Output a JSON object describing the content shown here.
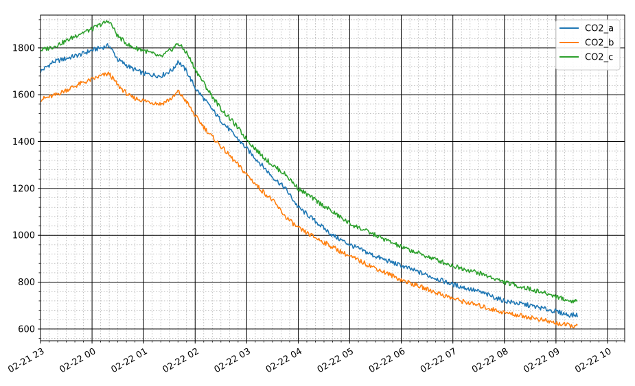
{
  "chart_data": {
    "type": "line",
    "title": "",
    "xlabel": "",
    "ylabel": "",
    "x_range": [
      "2022-02-21 23:00",
      "2022-02-22 10:20"
    ],
    "ylim": [
      550,
      1940
    ],
    "grid": "on",
    "legend_placement": "top-right",
    "x_tick_labels": [
      "02-21 23",
      "02-22 00",
      "02-22 01",
      "02-22 02",
      "02-22 03",
      "02-22 04",
      "02-22 05",
      "02-22 06",
      "02-22 07",
      "02-22 08",
      "02-22 09",
      "02-22 10"
    ],
    "x_tick_values": [
      "2022-02-21 23:00",
      "2022-02-22 00:00",
      "2022-02-22 01:00",
      "2022-02-22 02:00",
      "2022-02-22 03:00",
      "2022-02-22 04:00",
      "2022-02-22 05:00",
      "2022-02-22 06:00",
      "2022-02-22 07:00",
      "2022-02-22 08:00",
      "2022-02-22 09:00",
      "2022-02-22 10:00"
    ],
    "y_ticks": [
      600,
      800,
      1000,
      1200,
      1400,
      1600,
      1800
    ],
    "x": [
      "2022-02-21 23:00",
      "2022-02-21 23:15",
      "2022-02-21 23:30",
      "2022-02-21 23:45",
      "2022-02-22 00:00",
      "2022-02-22 00:10",
      "2022-02-22 00:20",
      "2022-02-22 00:30",
      "2022-02-22 00:45",
      "2022-02-22 01:00",
      "2022-02-22 01:20",
      "2022-02-22 01:35",
      "2022-02-22 01:40",
      "2022-02-22 01:50",
      "2022-02-22 02:00",
      "2022-02-22 02:15",
      "2022-02-22 02:30",
      "2022-02-22 02:45",
      "2022-02-22 03:00",
      "2022-02-22 03:15",
      "2022-02-22 03:30",
      "2022-02-22 03:45",
      "2022-02-22 04:00",
      "2022-02-22 04:20",
      "2022-02-22 04:40",
      "2022-02-22 05:00",
      "2022-02-22 05:30",
      "2022-02-22 06:00",
      "2022-02-22 06:30",
      "2022-02-22 07:00",
      "2022-02-22 07:30",
      "2022-02-22 08:00",
      "2022-02-22 08:30",
      "2022-02-22 09:00",
      "2022-02-22 09:15",
      "2022-02-22 09:25"
    ],
    "series": [
      {
        "name": "CO2_a",
        "color": "#1f77b4",
        "values": [
          1700,
          1740,
          1755,
          1770,
          1790,
          1800,
          1810,
          1750,
          1715,
          1690,
          1680,
          1710,
          1745,
          1700,
          1630,
          1560,
          1490,
          1430,
          1370,
          1310,
          1250,
          1200,
          1120,
          1060,
          1000,
          960,
          910,
          870,
          830,
          790,
          760,
          720,
          700,
          675,
          660,
          660
        ]
      },
      {
        "name": "CO2_b",
        "color": "#ff7f0e",
        "values": [
          1580,
          1595,
          1620,
          1645,
          1665,
          1680,
          1690,
          1640,
          1590,
          1575,
          1560,
          1590,
          1615,
          1570,
          1510,
          1440,
          1380,
          1320,
          1260,
          1200,
          1150,
          1080,
          1030,
          990,
          950,
          910,
          860,
          810,
          770,
          730,
          700,
          670,
          650,
          625,
          615,
          612
        ]
      },
      {
        "name": "CO2_c",
        "color": "#2ca02c",
        "values": [
          1790,
          1805,
          1830,
          1860,
          1880,
          1900,
          1915,
          1850,
          1805,
          1790,
          1760,
          1800,
          1820,
          1780,
          1710,
          1620,
          1540,
          1480,
          1410,
          1350,
          1300,
          1260,
          1200,
          1150,
          1100,
          1050,
          1000,
          950,
          910,
          870,
          840,
          800,
          770,
          740,
          720,
          720
        ]
      }
    ]
  }
}
